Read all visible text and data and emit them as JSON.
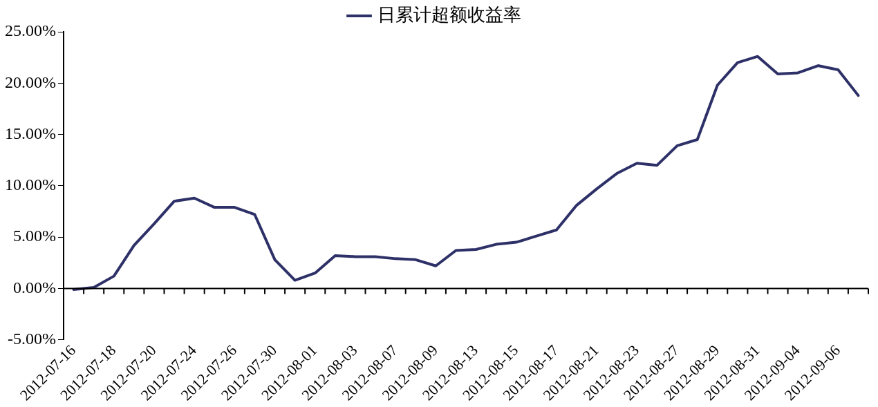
{
  "chart_data": {
    "type": "line",
    "categories": [
      "2012-07-16",
      null,
      "2012-07-18",
      null,
      "2012-07-20",
      null,
      "2012-07-24",
      null,
      "2012-07-26",
      null,
      "2012-07-30",
      null,
      "2012-08-01",
      null,
      "2012-08-03",
      null,
      "2012-08-07",
      null,
      "2012-08-09",
      null,
      "2012-08-13",
      null,
      "2012-08-15",
      null,
      "2012-08-17",
      null,
      "2012-08-21",
      null,
      "2012-08-23",
      null,
      "2012-08-27",
      null,
      "2012-08-29",
      null,
      "2012-08-31",
      null,
      "2012-09-04",
      null,
      "2012-09-06",
      null
    ],
    "series": [
      {
        "name": "日累计超额收益率",
        "color": "#2e3168",
        "values": [
          -0.1,
          0.1,
          1.2,
          4.2,
          6.3,
          8.5,
          8.8,
          7.9,
          7.9,
          7.2,
          2.8,
          0.8,
          1.5,
          3.2,
          3.1,
          3.1,
          2.9,
          2.8,
          2.2,
          3.7,
          3.8,
          4.3,
          4.5,
          5.1,
          5.7,
          8.1,
          9.7,
          11.2,
          12.2,
          12.0,
          13.9,
          14.5,
          19.8,
          22.0,
          22.6,
          20.9,
          21.0,
          21.7,
          21.3,
          18.8
        ]
      }
    ],
    "ylim": [
      -5,
      25
    ],
    "yticks": [
      {
        "value": -5,
        "label": "-5.00%"
      },
      {
        "value": 0,
        "label": "0.00%"
      },
      {
        "value": 5,
        "label": "5.00%"
      },
      {
        "value": 10,
        "label": "10.00%"
      },
      {
        "value": 15,
        "label": "15.00%"
      },
      {
        "value": 20,
        "label": "20.00%"
      },
      {
        "value": 25,
        "label": "25.00%"
      }
    ],
    "legend": "top",
    "marker": "none",
    "line_style": "solid"
  }
}
